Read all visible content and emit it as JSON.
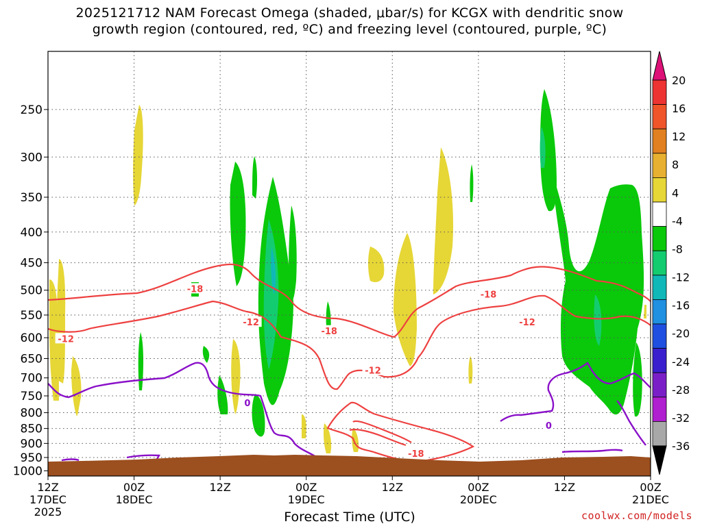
{
  "header": {
    "title_line1": "2025121712 NAM Forecast Omega (shaded, μbar/s) for KCGX with dendritic snow",
    "title_line2": "growth region (contoured, red, ºC) and freezing level (contoured, purple, ºC)"
  },
  "footer": {
    "credit": "coolwx.com/models"
  },
  "colors": {
    "ground": "#9c4f1f",
    "dendritic_contour": "#ee4040",
    "freezing_contour": "#8a10c8",
    "grid": "#555555"
  },
  "chart_data": {
    "type": "heatmap",
    "xlabel": "Forecast Time (UTC)",
    "ylabel": "",
    "x_ticks": [
      {
        "hour": 0,
        "line1": "12Z",
        "line2": "17DEC",
        "line3": "2025"
      },
      {
        "hour": 12,
        "line1": "00Z",
        "line2": "18DEC",
        "line3": ""
      },
      {
        "hour": 24,
        "line1": "12Z",
        "line2": "",
        "line3": ""
      },
      {
        "hour": 36,
        "line1": "00Z",
        "line2": "19DEC",
        "line3": ""
      },
      {
        "hour": 48,
        "line1": "12Z",
        "line2": "",
        "line3": ""
      },
      {
        "hour": 60,
        "line1": "00Z",
        "line2": "20DEC",
        "line3": ""
      },
      {
        "hour": 72,
        "line1": "12Z",
        "line2": "",
        "line3": ""
      },
      {
        "hour": 84,
        "line1": "00Z",
        "line2": "21DEC",
        "line3": ""
      }
    ],
    "xlim": [
      0,
      84
    ],
    "y_ticks": [
      250,
      300,
      350,
      400,
      450,
      500,
      550,
      600,
      650,
      700,
      750,
      800,
      850,
      900,
      950,
      1000
    ],
    "ylim": [
      200,
      1020
    ],
    "yscale": "log",
    "colorbar": {
      "labels": [
        "20",
        "16",
        "12",
        "8",
        "4",
        "-4",
        "-8",
        "-12",
        "-16",
        "-20",
        "-24",
        "-28",
        "-32",
        "-36"
      ],
      "colors": [
        "#dd1177",
        "#ee3333",
        "#f0552a",
        "#e08020",
        "#e8b030",
        "#e6d636",
        "#ffffff",
        "#0ac90a",
        "#14cc70",
        "#10b8b8",
        "#2090e0",
        "#1f4fe0",
        "#3a1fcf",
        "#7a1fc8",
        "#b01fd0",
        "#a8a8a8",
        "#000000"
      ]
    },
    "contour_labels": [
      {
        "text": "-18",
        "hour": 20.5,
        "p": 497,
        "series": "dendritic"
      },
      {
        "text": "-12",
        "hour": 28.3,
        "p": 565,
        "series": "dendritic"
      },
      {
        "text": "-12",
        "hour": 2.5,
        "p": 602,
        "series": "dendritic"
      },
      {
        "text": "-18",
        "hour": 39.2,
        "p": 584,
        "series": "dendritic"
      },
      {
        "text": "-12",
        "hour": 45.3,
        "p": 680,
        "series": "dendritic"
      },
      {
        "text": "-18",
        "hour": 51.3,
        "p": 935,
        "series": "dendritic"
      },
      {
        "text": "-18",
        "hour": 61.4,
        "p": 508,
        "series": "dendritic"
      },
      {
        "text": "-12",
        "hour": 66.8,
        "p": 565,
        "series": "dendritic"
      },
      {
        "text": "0",
        "hour": 27.8,
        "p": 770,
        "series": "freezing"
      },
      {
        "text": "0",
        "hour": 69.8,
        "p": 840,
        "series": "freezing"
      }
    ]
  }
}
